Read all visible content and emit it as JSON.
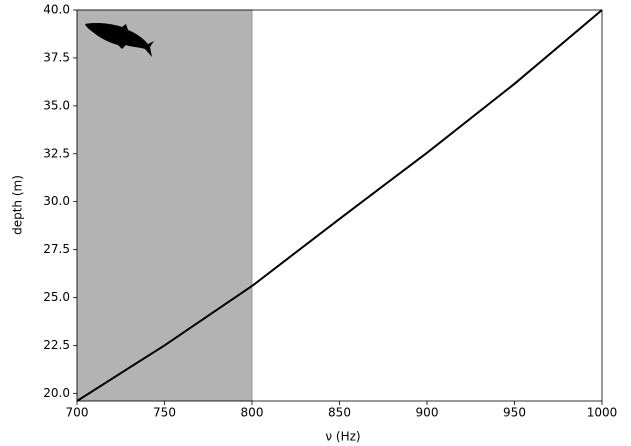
{
  "chart_data": {
    "type": "line",
    "xlabel": "ν (Hz)",
    "ylabel": "depth (m)",
    "x": [
      700,
      750,
      800,
      850,
      900,
      950,
      1000
    ],
    "series": [
      {
        "color": "#000000",
        "values": [
          19.6,
          22.5,
          25.6,
          29.1,
          32.55,
          36.15,
          40.0
        ]
      }
    ],
    "shaded_region": [
      700,
      800
    ],
    "shade_color": "#b3b3b3",
    "xlim": [
      700,
      1000
    ],
    "xticks": [
      700,
      750,
      800,
      850,
      900,
      950,
      1000
    ],
    "ylim": [
      19.6,
      40.0
    ],
    "yticks": [
      {
        "value": 20,
        "label": "20.0"
      },
      {
        "value": 22.5,
        "label": "22.5"
      },
      {
        "value": 25,
        "label": "25.0"
      },
      {
        "value": 27.5,
        "label": "27.5"
      },
      {
        "value": 30,
        "label": "30.0"
      },
      {
        "value": 32.5,
        "label": "32.5"
      },
      {
        "value": 35,
        "label": "35.0"
      },
      {
        "value": 37.5,
        "label": "37.5"
      },
      {
        "value": 40,
        "label": "40.0"
      }
    ],
    "grid": false
  }
}
